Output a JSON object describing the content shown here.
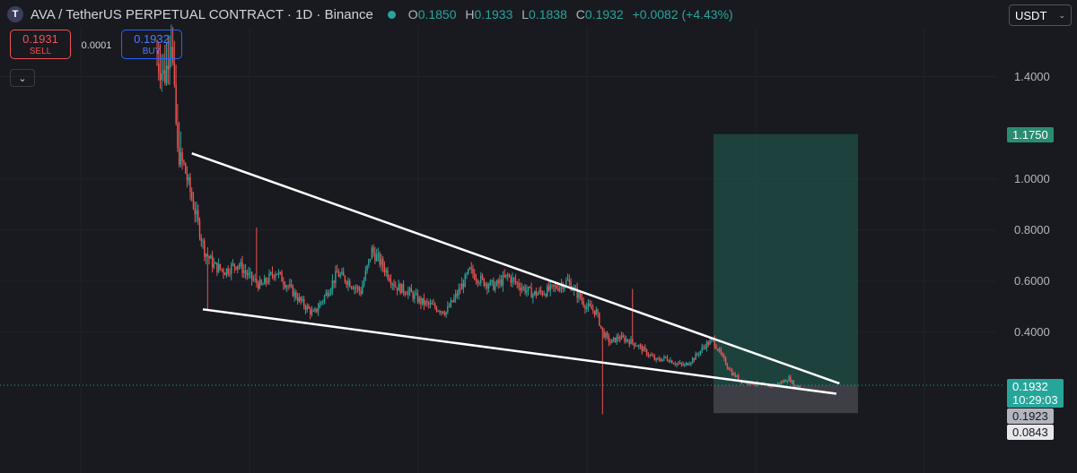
{
  "header": {
    "logo_letter": "T",
    "title": "AVA / TetherUS PERPETUAL CONTRACT · 1D · Binance",
    "ohlc": [
      {
        "key": "O",
        "value": "0.1850"
      },
      {
        "key": "H",
        "value": "0.1933"
      },
      {
        "key": "L",
        "value": "0.1838"
      },
      {
        "key": "C",
        "value": "0.1932"
      }
    ],
    "change": "+0.0082 (+4.43%)"
  },
  "trade": {
    "sell_price": "0.1931",
    "sell_label": "SELL",
    "spread": "0.0001",
    "buy_price": "0.1932",
    "buy_label": "BUY"
  },
  "currency": {
    "label": "USDT",
    "chevron": "⌄"
  },
  "collapse_icon": "⌄",
  "price_axis": {
    "ticks": [
      "1.4000",
      "1.0000",
      "0.8000",
      "0.6000",
      "0.4000"
    ],
    "tags": {
      "target": "1.1750",
      "current": "0.1932",
      "countdown": "10:29:03",
      "stop": "0.1923",
      "low": "0.0843"
    }
  },
  "colors": {
    "background": "#181a20",
    "up": "#26a69a",
    "down": "#ef5350",
    "trendline": "#ffffff",
    "target_zone": "#1f4a44",
    "stop_zone": "#45474d"
  },
  "chart_data": {
    "type": "candlestick",
    "symbol": "AVA / TetherUS PERPETUAL CONTRACT",
    "interval": "1D",
    "exchange": "Binance",
    "ylim": [
      0.05,
      1.65
    ],
    "y_ticks": [
      1.4,
      1.0,
      0.8,
      0.6,
      0.4
    ],
    "close_path": [
      [
        0,
        1.45
      ],
      [
        5,
        1.4
      ],
      [
        9,
        1.55
      ],
      [
        13,
        1.1
      ],
      [
        17,
        1.05
      ],
      [
        21,
        0.95
      ],
      [
        25,
        0.85
      ],
      [
        30,
        0.72
      ],
      [
        36,
        0.66
      ],
      [
        43,
        0.64
      ],
      [
        51,
        0.67
      ],
      [
        58,
        0.62
      ],
      [
        66,
        0.58
      ],
      [
        75,
        0.64
      ],
      [
        83,
        0.58
      ],
      [
        91,
        0.52
      ],
      [
        99,
        0.47
      ],
      [
        107,
        0.55
      ],
      [
        114,
        0.63
      ],
      [
        121,
        0.6
      ],
      [
        129,
        0.56
      ],
      [
        136,
        0.72
      ],
      [
        143,
        0.66
      ],
      [
        151,
        0.58
      ],
      [
        159,
        0.56
      ],
      [
        167,
        0.52
      ],
      [
        175,
        0.5
      ],
      [
        183,
        0.48
      ],
      [
        191,
        0.56
      ],
      [
        198,
        0.64
      ],
      [
        206,
        0.6
      ],
      [
        214,
        0.58
      ],
      [
        222,
        0.62
      ],
      [
        230,
        0.58
      ],
      [
        238,
        0.55
      ],
      [
        246,
        0.56
      ],
      [
        254,
        0.58
      ],
      [
        260,
        0.6
      ],
      [
        266,
        0.55
      ],
      [
        272,
        0.5
      ],
      [
        278,
        0.48
      ],
      [
        282,
        0.4
      ],
      [
        287,
        0.36
      ],
      [
        292,
        0.38
      ],
      [
        298,
        0.37
      ],
      [
        304,
        0.35
      ],
      [
        310,
        0.32
      ],
      [
        316,
        0.29
      ],
      [
        322,
        0.3
      ],
      [
        328,
        0.28
      ],
      [
        334,
        0.27
      ],
      [
        340,
        0.3
      ],
      [
        347,
        0.35
      ],
      [
        352,
        0.37
      ],
      [
        358,
        0.3
      ],
      [
        364,
        0.24
      ],
      [
        370,
        0.21
      ],
      [
        378,
        0.2
      ],
      [
        386,
        0.19
      ],
      [
        394,
        0.2
      ],
      [
        400,
        0.22
      ],
      [
        404,
        0.19
      ],
      [
        407,
        0.193
      ]
    ],
    "trendlines": [
      {
        "name": "upper",
        "from": [
          22,
          1.1
        ],
        "to": [
          432,
          0.2
        ]
      },
      {
        "name": "lower",
        "from": [
          29,
          0.49
        ],
        "to": [
          430,
          0.16
        ]
      }
    ],
    "position": {
      "type": "long",
      "entry": 0.1932,
      "target": 1.175,
      "stop": 0.0843
    },
    "current_price": 0.1932
  }
}
